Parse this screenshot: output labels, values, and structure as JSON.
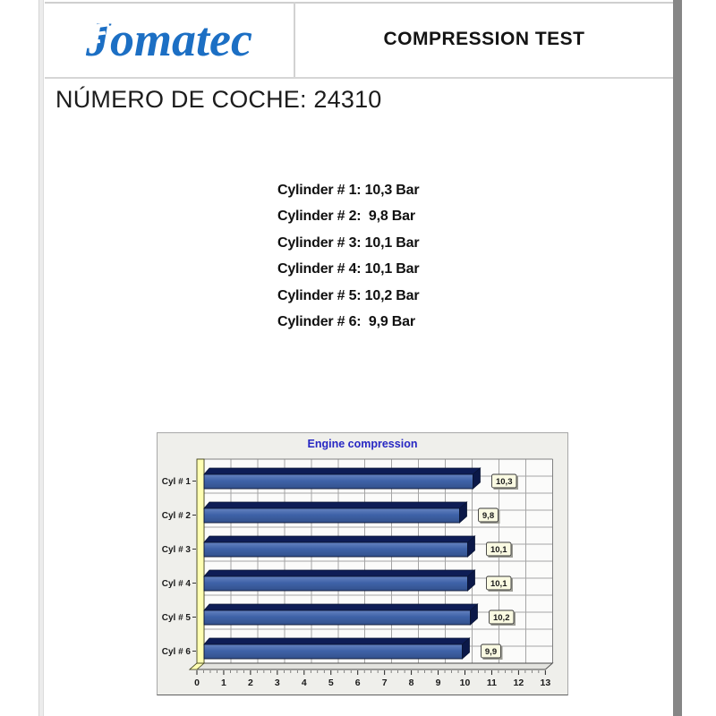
{
  "brand": {
    "logo_text": "Jomatec",
    "logo_color": "#1c6fc4"
  },
  "header": {
    "title": "COMPRESSION TEST"
  },
  "document": {
    "car_number_line": "NÚMERO DE COCHE: 24310"
  },
  "readings": {
    "lines": [
      "Cylinder # 1: 10,3 Bar",
      "Cylinder # 2:  9,8 Bar",
      "Cylinder # 3: 10,1 Bar",
      "Cylinder # 4: 10,1 Bar",
      "Cylinder # 5: 10,2 Bar",
      "Cylinder # 6:  9,9 Bar"
    ]
  },
  "chart_data": {
    "type": "bar",
    "orientation": "horizontal",
    "title": "Engine compression",
    "categories": [
      "Cyl # 1",
      "Cyl # 2",
      "Cyl # 3",
      "Cyl # 4",
      "Cyl # 5",
      "Cyl # 6"
    ],
    "values": [
      10.3,
      9.8,
      10.1,
      10.1,
      10.2,
      9.9
    ],
    "value_labels": [
      "10,3",
      "9,8",
      "10,1",
      "10,1",
      "10,2",
      "9,9"
    ],
    "unit": "Bar",
    "xlim": [
      0,
      13
    ],
    "x_ticks": [
      0,
      1,
      2,
      3,
      4,
      5,
      6,
      7,
      8,
      9,
      10,
      11,
      12,
      13
    ],
    "grid": true,
    "style_3d": true,
    "legend": "none",
    "colors": {
      "title": "#2727c3",
      "panel_bg": "#efefeb",
      "plot_bg": "#fbfbfa",
      "grid": "#a5a5a5",
      "plot_border": "#808080",
      "wall": "#ffffb2",
      "wall_border": "#44441c",
      "bar_front_top": "#6583c0",
      "bar_front": "#3f62a8",
      "bar_front_bottom": "#33518c",
      "bar_top_face": "#0e1d56",
      "bar_end_face": "#0b1848",
      "bar_outline": "#0a1534",
      "floor": "#e3e3df",
      "floor_border": "#4a4a4a",
      "axis_text": "#1a1a1a",
      "value_box_bg": "#fafae2",
      "value_box_border": "#3a3a3a",
      "value_box_shadow": "#9c9c94"
    }
  }
}
